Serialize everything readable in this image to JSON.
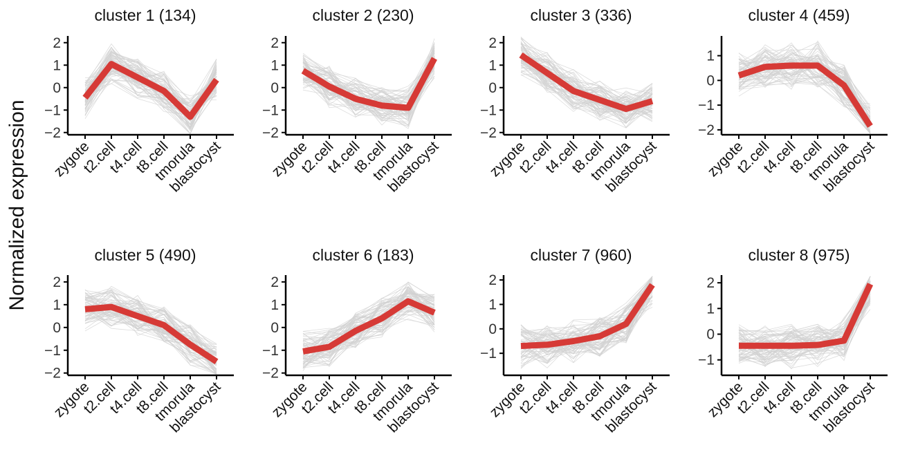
{
  "ylabel": "Normalized expression",
  "colors": {
    "profile": "#d1d1d1",
    "mean": "#d63a36",
    "axis": "#000000"
  },
  "categories": [
    "zygote",
    "t2.cell",
    "t4.cell",
    "t8.cell",
    "tmorula",
    "blastocyst"
  ],
  "chart_data": [
    {
      "type": "line",
      "title": "cluster 1 (134)",
      "ylim": [
        -2.1,
        2.3
      ],
      "yticks": [
        -2,
        -1,
        0,
        1,
        2
      ],
      "categories": [
        "zygote",
        "t2.cell",
        "t4.cell",
        "t8.cell",
        "tmorula",
        "blastocyst"
      ],
      "series": [
        {
          "values": [
            -0.45,
            1.05,
            0.45,
            -0.15,
            -1.3,
            0.35
          ]
        }
      ]
    },
    {
      "type": "line",
      "title": "cluster 2 (230)",
      "ylim": [
        -2.1,
        2.3
      ],
      "yticks": [
        -2,
        -1,
        0,
        1,
        2
      ],
      "categories": [
        "zygote",
        "t2.cell",
        "t4.cell",
        "t8.cell",
        "tmorula",
        "blastocyst"
      ],
      "series": [
        {
          "values": [
            0.75,
            0.05,
            -0.5,
            -0.8,
            -0.9,
            1.3
          ]
        }
      ]
    },
    {
      "type": "line",
      "title": "cluster 3 (336)",
      "ylim": [
        -2.1,
        2.3
      ],
      "yticks": [
        -2,
        -1,
        0,
        1,
        2
      ],
      "categories": [
        "zygote",
        "t2.cell",
        "t4.cell",
        "t8.cell",
        "tmorula",
        "blastocyst"
      ],
      "series": [
        {
          "values": [
            1.45,
            0.65,
            -0.15,
            -0.55,
            -0.95,
            -0.6
          ]
        }
      ]
    },
    {
      "type": "line",
      "title": "cluster 4 (459)",
      "ylim": [
        -2.2,
        1.8
      ],
      "yticks": [
        -2,
        -1,
        0,
        1
      ],
      "categories": [
        "zygote",
        "t2.cell",
        "t4.cell",
        "t8.cell",
        "tmorula",
        "blastocyst"
      ],
      "series": [
        {
          "values": [
            0.2,
            0.55,
            0.6,
            0.6,
            -0.2,
            -1.85
          ]
        }
      ]
    },
    {
      "type": "line",
      "title": "cluster 5 (490)",
      "ylim": [
        -2.1,
        2.3
      ],
      "yticks": [
        -2,
        -1,
        0,
        1,
        2
      ],
      "categories": [
        "zygote",
        "t2.cell",
        "t4.cell",
        "t8.cell",
        "tmorula",
        "blastocyst"
      ],
      "series": [
        {
          "values": [
            0.8,
            0.9,
            0.5,
            0.1,
            -0.75,
            -1.5
          ]
        }
      ]
    },
    {
      "type": "line",
      "title": "cluster 6 (183)",
      "ylim": [
        -2.1,
        2.3
      ],
      "yticks": [
        -2,
        -1,
        0,
        1,
        2
      ],
      "categories": [
        "zygote",
        "t2.cell",
        "t4.cell",
        "t8.cell",
        "tmorula",
        "blastocyst"
      ],
      "series": [
        {
          "values": [
            -1.05,
            -0.85,
            -0.15,
            0.4,
            1.15,
            0.65
          ]
        }
      ]
    },
    {
      "type": "line",
      "title": "cluster 7 (960)",
      "ylim": [
        -1.9,
        2.2
      ],
      "yticks": [
        -1,
        0,
        1,
        2
      ],
      "categories": [
        "zygote",
        "t2.cell",
        "t4.cell",
        "t8.cell",
        "tmorula",
        "blastocyst"
      ],
      "series": [
        {
          "values": [
            -0.7,
            -0.65,
            -0.5,
            -0.3,
            0.2,
            1.8
          ]
        }
      ]
    },
    {
      "type": "line",
      "title": "cluster 8 (975)",
      "ylim": [
        -1.6,
        2.3
      ],
      "yticks": [
        -1,
        0,
        1,
        2
      ],
      "categories": [
        "zygote",
        "t2.cell",
        "t4.cell",
        "t8.cell",
        "tmorula",
        "blastocyst"
      ],
      "series": [
        {
          "values": [
            -0.45,
            -0.45,
            -0.45,
            -0.42,
            -0.25,
            1.95
          ]
        }
      ]
    }
  ]
}
